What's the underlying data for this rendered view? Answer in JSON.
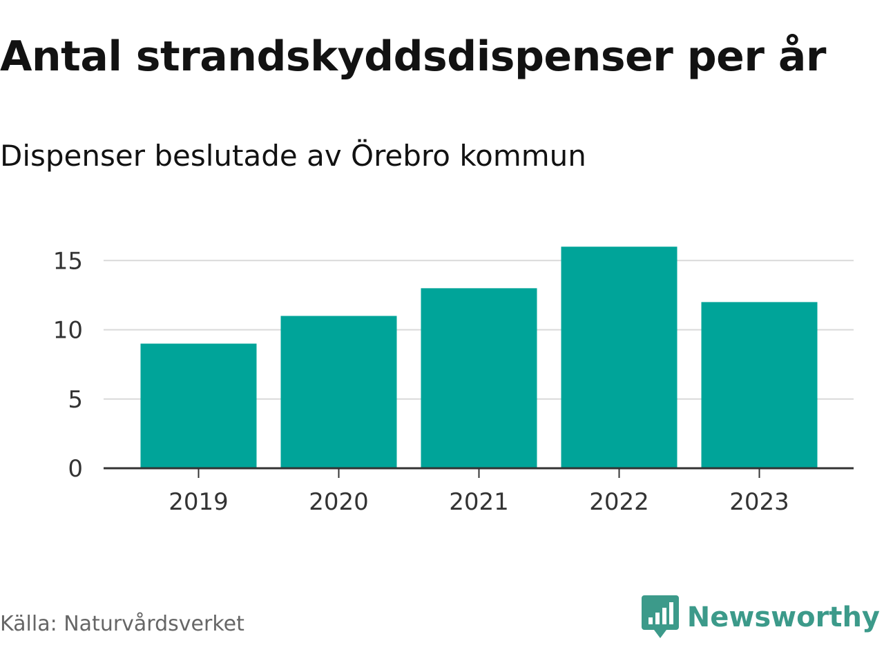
{
  "colors": {
    "bar": "#00a499",
    "grid": "#d9d9d9",
    "axis": "#333333",
    "brand": "#3c9a8a"
  },
  "chart_data": {
    "type": "bar",
    "title": "Antal strandskyddsdispenser per år",
    "subtitle": "Dispenser beslutade av Örebro kommun",
    "categories": [
      "2019",
      "2020",
      "2021",
      "2022",
      "2023"
    ],
    "values": [
      9,
      11,
      13,
      16,
      12
    ],
    "xlabel": "",
    "ylabel": "",
    "ylim": [
      0,
      16
    ],
    "yticks": [
      0,
      5,
      10,
      15
    ],
    "grid": true
  },
  "footer": {
    "source": "Källa: Naturvårdsverket",
    "brand": "Newsworthy",
    "brand_icon": "newsworthy-logo-icon"
  }
}
